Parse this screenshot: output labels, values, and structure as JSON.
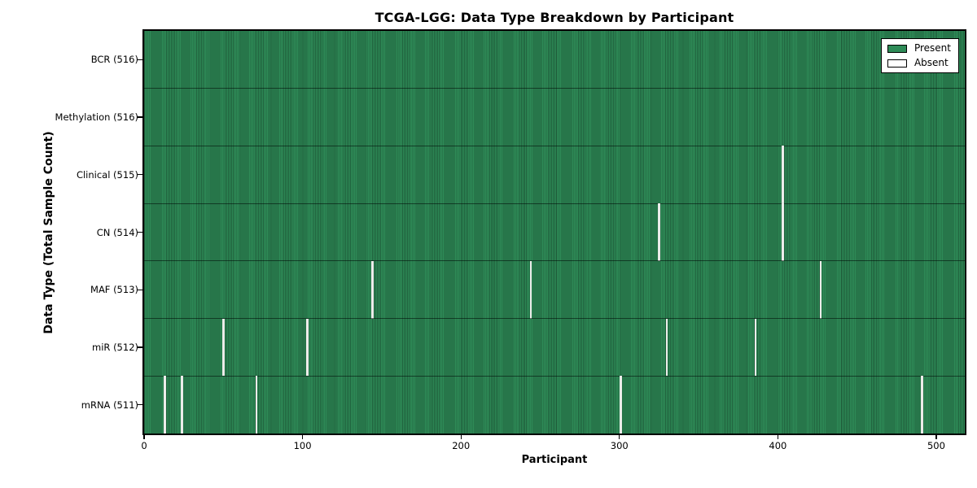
{
  "chart_data": {
    "type": "heatmap",
    "title": "TCGA-LGG: Data Type Breakdown by Participant",
    "xlabel": "Participant",
    "ylabel": "Data Type (Total Sample Count)",
    "x_ticks": [
      0,
      100,
      200,
      300,
      400,
      500
    ],
    "xlim": [
      0,
      518
    ],
    "n_participants": 516,
    "n_rows": 7,
    "grid": "off",
    "legend_position": "upper right",
    "legend_items": [
      {
        "label": "Present",
        "color": "#2e8b57"
      },
      {
        "label": "Absent",
        "color": "#ffffff"
      }
    ],
    "colors": {
      "present": "#2e8b57",
      "absent": "#ffffff",
      "cell_edge": "#1d5838",
      "spine": "#000000"
    },
    "rows": [
      {
        "label": "BCR (516)",
        "name": "BCR",
        "total": 516,
        "absent_participants": []
      },
      {
        "label": "Methylation (516)",
        "name": "Methylation",
        "total": 516,
        "absent_participants": []
      },
      {
        "label": "Clinical (515)",
        "name": "Clinical",
        "total": 515,
        "absent_participants": [
          403
        ]
      },
      {
        "label": "CN (514)",
        "name": "CN",
        "total": 514,
        "absent_participants": [
          325,
          403
        ]
      },
      {
        "label": "MAF (513)",
        "name": "MAF",
        "total": 513,
        "absent_participants": [
          144,
          244,
          427
        ]
      },
      {
        "label": "miR (512)",
        "name": "miR",
        "total": 512,
        "absent_participants": [
          50,
          103,
          330,
          386
        ]
      },
      {
        "label": "mRNA (511)",
        "name": "mRNA",
        "total": 511,
        "absent_participants": [
          13,
          24,
          71,
          301,
          491
        ]
      }
    ]
  }
}
